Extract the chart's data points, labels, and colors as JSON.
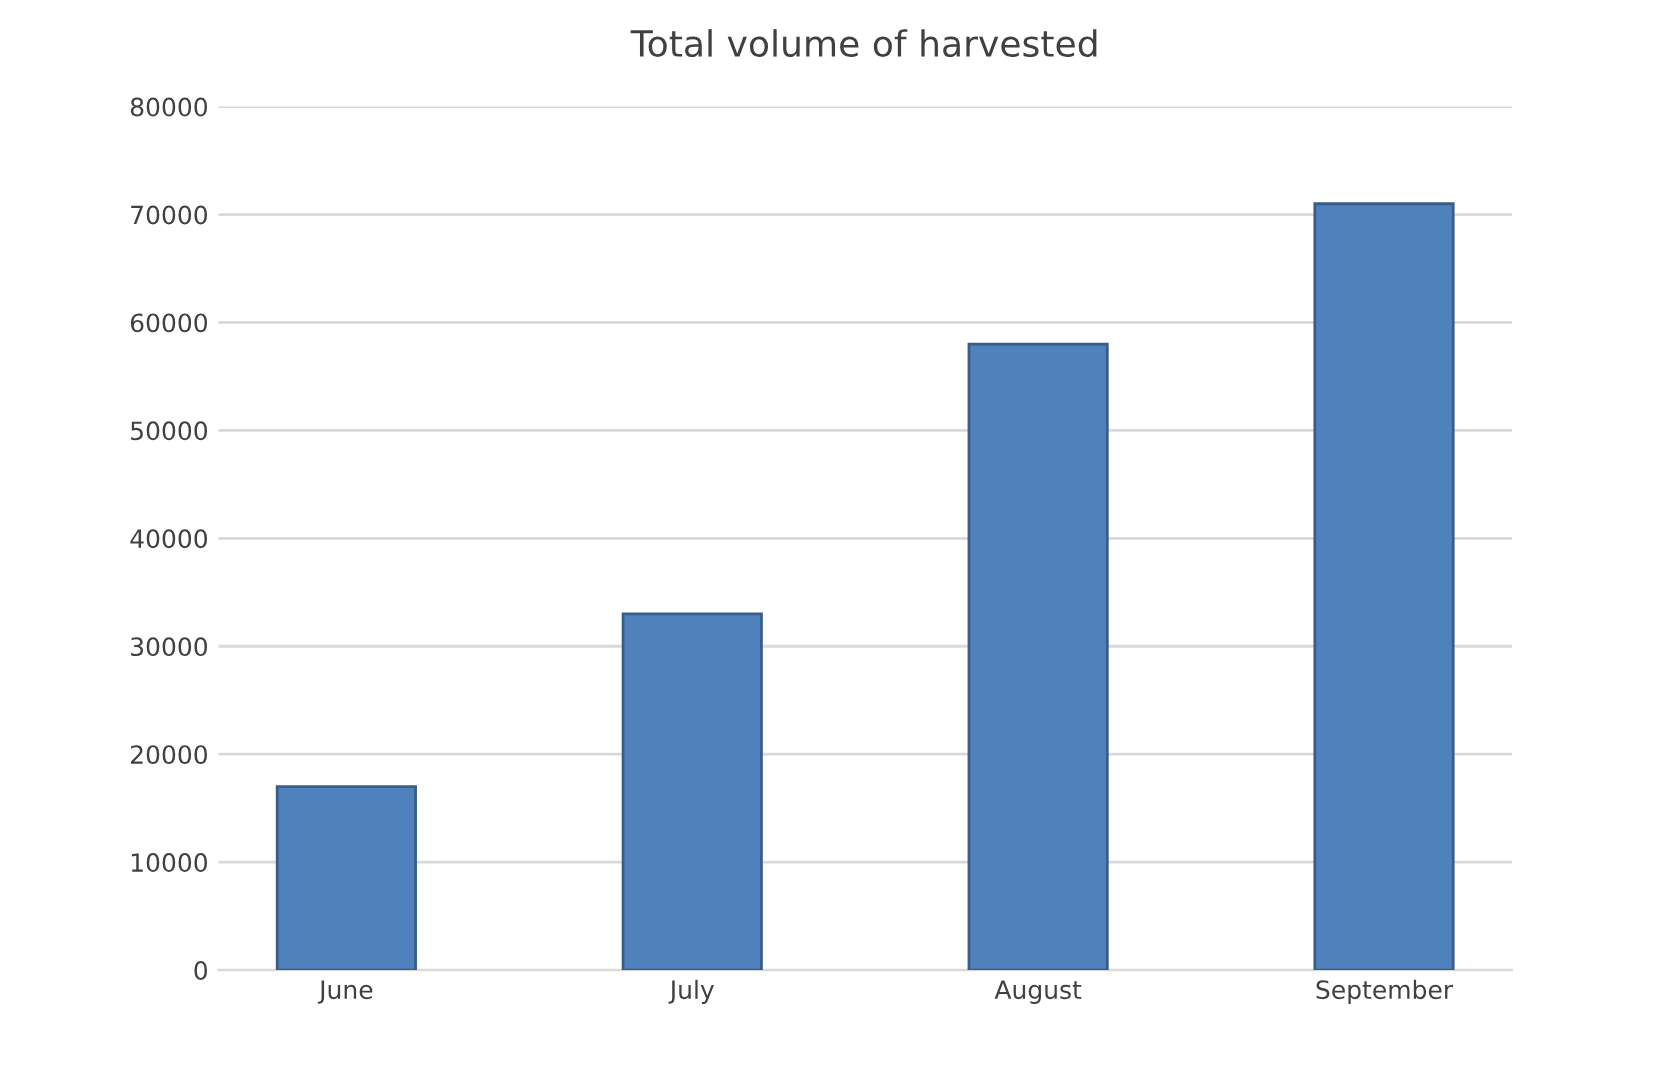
{
  "chart_data": {
    "type": "bar",
    "title": "Total volume of harvested",
    "categories": [
      "June",
      "July",
      "August",
      "September"
    ],
    "values": [
      17000,
      33000,
      58000,
      71000
    ],
    "color": "#4f81bd",
    "ylim": [
      0,
      80000
    ],
    "yticks": [
      0,
      10000,
      20000,
      30000,
      40000,
      50000,
      60000,
      70000,
      80000
    ],
    "grid": "y"
  }
}
